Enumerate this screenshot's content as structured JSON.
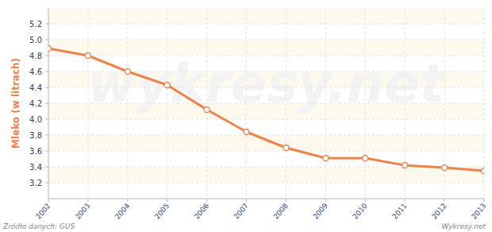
{
  "chart_data": {
    "type": "line",
    "y_label": "Mleko (w litrach)",
    "source": "Źródło danych: GUS",
    "credit": "Wykresy.net",
    "watermark": "wykresy.net",
    "categories": [
      "2002",
      "2003",
      "2004",
      "2005",
      "2006",
      "2007",
      "2008",
      "2009",
      "2010",
      "2011",
      "2012",
      "2013"
    ],
    "values": [
      4.89,
      4.8,
      4.6,
      4.43,
      4.12,
      3.84,
      3.64,
      3.51,
      3.51,
      3.42,
      3.39,
      3.35
    ],
    "color": "#f0824a",
    "marker": "circle",
    "ylim": [
      3.0,
      5.4
    ],
    "yticks": [
      3.2,
      3.4,
      3.6,
      3.8,
      {
        "value": 4,
        "label": "4.0"
      },
      4.2,
      4.4,
      4.6,
      4.8,
      {
        "value": 5,
        "label": "5.0"
      },
      5.2
    ],
    "grid": true
  }
}
